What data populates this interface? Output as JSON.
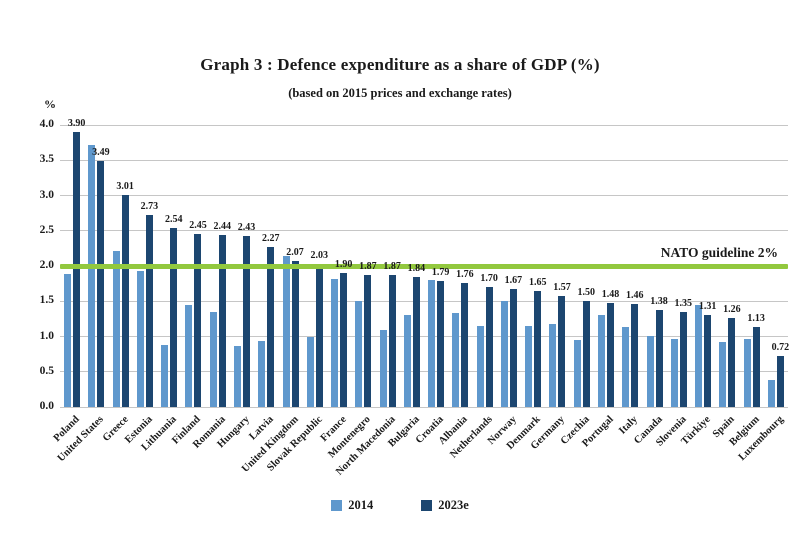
{
  "page": {
    "background": "#ffffff"
  },
  "chart_data": {
    "type": "bar",
    "title": "Graph 3 : Defence expenditure as a share of GDP (%)",
    "subtitle": "(based on 2015 prices and exchange rates)",
    "y_unit_label": "%",
    "ylim": [
      0,
      4.0
    ],
    "ytick_step": 0.5,
    "yticks": [
      "4.0",
      "3.5",
      "3.0",
      "2.5",
      "2.0",
      "1.5",
      "1.0",
      "0.5",
      "0.0"
    ],
    "grid": true,
    "legend_position": "bottom",
    "categories": [
      "Poland",
      "United States",
      "Greece",
      "Estonia",
      "Lithuania",
      "Finland",
      "Romania",
      "Hungary",
      "Latvia",
      "United Kingdom",
      "Slovak Republic",
      "France",
      "Montenegro",
      "North Macedonia",
      "Bulgaria",
      "Croatia",
      "Albania",
      "Netherlands",
      "Norway",
      "Denmark",
      "Germany",
      "Czechia",
      "Portugal",
      "Italy",
      "Canada",
      "Slovenia",
      "Türkiye",
      "Spain",
      "Belgium",
      "Luxembourg"
    ],
    "series": [
      {
        "name": "2014",
        "color": "#5f98cd",
        "data_labels": false,
        "values": [
          1.88,
          3.72,
          2.22,
          1.93,
          0.88,
          1.45,
          1.35,
          0.86,
          0.94,
          2.14,
          0.99,
          1.82,
          1.5,
          1.09,
          1.31,
          1.8,
          1.34,
          1.15,
          1.51,
          1.15,
          1.18,
          0.95,
          1.31,
          1.14,
          1.01,
          0.97,
          1.45,
          0.92,
          0.97,
          0.38
        ]
      },
      {
        "name": "2023e",
        "color": "#1c4670",
        "data_labels": true,
        "values": [
          3.9,
          3.49,
          3.01,
          2.73,
          2.54,
          2.45,
          2.44,
          2.43,
          2.27,
          2.07,
          2.03,
          1.9,
          1.87,
          1.87,
          1.84,
          1.79,
          1.76,
          1.7,
          1.67,
          1.65,
          1.57,
          1.5,
          1.48,
          1.46,
          1.38,
          1.35,
          1.31,
          1.26,
          1.13,
          0.72
        ]
      }
    ],
    "guideline": {
      "value": 2.0,
      "label": "NATO guideline 2%",
      "color": "#92c83e"
    },
    "legend": {
      "entries": [
        {
          "label": "2014",
          "color": "#5f98cd"
        },
        {
          "label": "2023e",
          "color": "#1c4670"
        }
      ]
    }
  },
  "colors": {
    "gridline": "#c6c6c6",
    "text": "#1a1a1a"
  }
}
